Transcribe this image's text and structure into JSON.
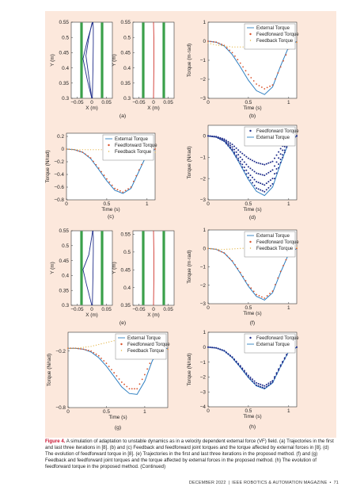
{
  "caption": {
    "label": "Figure 4.",
    "text": "A simulation of adaptation to unstable dynamics as in a velocity dependent external force (VF) field. (a) Trajectories in the first and last three iterations in [8]. (b) and (c) Feedback and feedforward joint torques and the torque affected by external forces in [8]. (d) The evolution of feedforward torque in [8]. (e) Trajectories in the first and last three iterations in the proposed method. (f) and (g) Feedback and feedforward joint torques and the torque affected by external forces in the proposed method. (h) The evolution of feedforward torque in the proposed method. (Continued)"
  },
  "footer": {
    "date": "DECEMBER 2022",
    "magazine": "IEEE ROBOTICS & AUTOMATION MAGAZINE",
    "page": "71"
  },
  "colors": {
    "external": "#2e7fc1",
    "feedforward": "#d9522a",
    "feedback": "#e3b23c",
    "ff_evolution": "#1f2d8a",
    "green": "#3aa04a",
    "red": "#d0342c",
    "blue": "#1f2d8a"
  },
  "legend_labels": {
    "external": "External Torque",
    "feedforward": "Feedforward Torque",
    "feedback": "Feedback Torque"
  },
  "chart_data": [
    {
      "id": "a",
      "panel_label": "(a)",
      "type": "line",
      "plots": [
        {
          "xlabel": "X (m)",
          "ylabel": "Y (m)",
          "xlim": [
            -0.07,
            0.07
          ],
          "ylim": [
            0.3,
            0.55
          ],
          "xticks": [
            "-0.05",
            "0",
            "0.05"
          ],
          "yticks": [
            "0.3",
            "0.35",
            "0.4",
            "0.45",
            "0.5",
            "0.55"
          ],
          "boundaries": [
            -0.035,
            0.035
          ],
          "series": [
            {
              "color": "blue",
              "x": [
                0,
                -0.015,
                -0.03,
                -0.015,
                0.0,
                0.003
              ],
              "y": [
                0.3,
                0.36,
                0.43,
                0.49,
                0.54,
                0.55
              ]
            },
            {
              "color": "blue",
              "x": [
                0,
                -0.01,
                -0.02,
                -0.01,
                0.0,
                0.003
              ],
              "y": [
                0.3,
                0.37,
                0.44,
                0.5,
                0.545,
                0.55
              ]
            },
            {
              "color": "blue",
              "x": [
                0.002,
                0.004,
                0.005,
                0.005,
                0.004
              ],
              "y": [
                0.3,
                0.4,
                0.48,
                0.53,
                0.55
              ]
            }
          ]
        },
        {
          "xlabel": "X (m)",
          "ylabel": "Y (m)",
          "xlim": [
            -0.07,
            0.07
          ],
          "ylim": [
            0.3,
            0.55
          ],
          "xticks": [
            "-0.05",
            "0",
            "0.05"
          ],
          "yticks": [
            "0.3",
            "0.35",
            "0.4",
            "0.45",
            "0.5",
            "0.55"
          ],
          "boundaries": [
            -0.035,
            0.035
          ],
          "series": [
            {
              "color": "red",
              "x": [
                0,
                0.001,
                0.001,
                0.0
              ],
              "y": [
                0.3,
                0.4,
                0.5,
                0.55
              ]
            }
          ]
        }
      ]
    },
    {
      "id": "b",
      "panel_label": "(b)",
      "type": "line",
      "xlabel": "Time (s)",
      "ylabel": "Torque (m·rad)",
      "xlim": [
        0,
        1.1
      ],
      "ylim": [
        -3,
        1
      ],
      "xticks": [
        "0",
        "0.5",
        "1"
      ],
      "yticks": [
        "-3",
        "-2",
        "-1",
        "0",
        "1"
      ],
      "legend": [
        "external",
        "feedforward",
        "feedback"
      ],
      "x": [
        0,
        0.1,
        0.2,
        0.3,
        0.4,
        0.5,
        0.6,
        0.7,
        0.8,
        0.9,
        1.0,
        1.1
      ],
      "series": [
        {
          "key": "external",
          "values": [
            0,
            -0.05,
            -0.25,
            -0.7,
            -1.35,
            -2.05,
            -2.6,
            -2.8,
            -2.4,
            -1.3,
            -0.3,
            0.0
          ]
        },
        {
          "key": "feedforward",
          "values": [
            0,
            -0.05,
            -0.22,
            -0.6,
            -1.15,
            -1.75,
            -2.25,
            -2.5,
            -2.3,
            -1.35,
            -0.4,
            -0.05
          ]
        },
        {
          "key": "feedback",
          "values": [
            -0.1,
            -0.2,
            -0.25,
            -0.3,
            -0.3,
            -0.3,
            -0.28,
            -0.25,
            -0.22,
            -0.15,
            -0.08,
            -0.05
          ]
        }
      ]
    },
    {
      "id": "c",
      "panel_label": "(c)",
      "type": "line",
      "xlabel": "Time (s)",
      "ylabel": "Torque (N/rad)",
      "xlim": [
        0,
        1.1
      ],
      "ylim": [
        -0.8,
        0.25
      ],
      "xticks": [
        "0",
        "0.5",
        "1"
      ],
      "yticks": [
        "-0.8",
        "-0.6",
        "-0.4",
        "-0.2",
        "0",
        "0.2"
      ],
      "legend": [
        "external",
        "feedforward",
        "feedback"
      ],
      "x": [
        0,
        0.1,
        0.2,
        0.3,
        0.4,
        0.5,
        0.6,
        0.7,
        0.8,
        0.9,
        1.0,
        1.1
      ],
      "series": [
        {
          "key": "external",
          "values": [
            0,
            -0.01,
            -0.05,
            -0.15,
            -0.32,
            -0.5,
            -0.65,
            -0.7,
            -0.62,
            -0.35,
            -0.08,
            0.0
          ]
        },
        {
          "key": "feedforward",
          "values": [
            0,
            -0.01,
            -0.05,
            -0.14,
            -0.3,
            -0.47,
            -0.62,
            -0.68,
            -0.6,
            -0.33,
            -0.07,
            0.0
          ]
        },
        {
          "key": "feedback",
          "values": [
            0,
            -0.01,
            -0.01,
            -0.01,
            -0.01,
            -0.01,
            -0.02,
            -0.02,
            -0.03,
            -0.06,
            -0.07,
            -0.05
          ]
        }
      ]
    },
    {
      "id": "d",
      "panel_label": "(d)",
      "type": "line",
      "xlabel": "Time (s)",
      "ylabel": "Torque (N/rad)",
      "xlim": [
        0,
        1.1
      ],
      "ylim": [
        -3,
        0.5
      ],
      "xticks": [
        "0",
        "0.5",
        "1"
      ],
      "yticks": [
        "-3",
        "-2",
        "-1",
        "0"
      ],
      "legend": [
        "feedforward",
        "external"
      ],
      "x": [
        0,
        0.1,
        0.2,
        0.3,
        0.4,
        0.5,
        0.6,
        0.7,
        0.8,
        0.9,
        1.0,
        1.1
      ],
      "series": [
        {
          "key": "external",
          "values": [
            0,
            -0.05,
            -0.25,
            -0.7,
            -1.35,
            -2.05,
            -2.6,
            -2.8,
            -2.4,
            -1.3,
            -0.3,
            0.0
          ]
        },
        {
          "key": "ff_evolution",
          "values": [
            0,
            -0.03,
            -0.15,
            -0.4,
            -0.75,
            -1.05,
            -1.25,
            -1.35,
            -1.2,
            -0.6,
            -0.1,
            0.0
          ]
        },
        {
          "key": "ff_evolution",
          "values": [
            0,
            -0.04,
            -0.2,
            -0.52,
            -1.0,
            -1.45,
            -1.75,
            -1.85,
            -1.6,
            -0.85,
            -0.15,
            0.0
          ]
        },
        {
          "key": "ff_evolution",
          "values": [
            0,
            -0.05,
            -0.23,
            -0.62,
            -1.2,
            -1.75,
            -2.15,
            -2.3,
            -2.0,
            -1.1,
            -0.25,
            0.0
          ]
        },
        {
          "key": "ff_evolution",
          "values": [
            0,
            -0.05,
            -0.25,
            -0.68,
            -1.3,
            -1.95,
            -2.45,
            -2.62,
            -2.25,
            -1.25,
            -0.3,
            0.0
          ]
        }
      ]
    },
    {
      "id": "e",
      "panel_label": "(e)",
      "type": "line",
      "plots": [
        {
          "xlabel": "X (m)",
          "ylabel": "Y (m)",
          "xlim": [
            -0.07,
            0.07
          ],
          "ylim": [
            0.3,
            0.55
          ],
          "xticks": [
            "-0.05",
            "0",
            "0.05"
          ],
          "yticks": [
            "0.3",
            "0.35",
            "0.4",
            "0.45",
            "0.5",
            "0.55"
          ],
          "boundaries": [
            -0.035,
            0.035
          ],
          "series": [
            {
              "color": "blue",
              "x": [
                0,
                -0.018,
                -0.03,
                -0.01,
                0.0,
                0.003
              ],
              "y": [
                0.3,
                0.37,
                0.42,
                0.47,
                0.53,
                0.55
              ]
            },
            {
              "color": "blue",
              "x": [
                0.002,
                0.004,
                0.005,
                0.005,
                0.004
              ],
              "y": [
                0.3,
                0.4,
                0.48,
                0.53,
                0.55
              ]
            }
          ]
        },
        {
          "xlabel": "X (m)",
          "ylabel": "Y (m)",
          "xlim": [
            -0.07,
            0.07
          ],
          "ylim": [
            0.35,
            0.56
          ],
          "xticks": [
            "-0.05",
            "0",
            "0.05"
          ],
          "yticks": [
            "0.35",
            "0.4",
            "0.45",
            "0.5",
            "0.55"
          ],
          "boundaries": [
            -0.035,
            0.035
          ],
          "series": [
            {
              "color": "red",
              "x": [
                0,
                0.001,
                0.001,
                0.0
              ],
              "y": [
                0.35,
                0.42,
                0.5,
                0.56
              ]
            }
          ]
        }
      ]
    },
    {
      "id": "f",
      "panel_label": "(f)",
      "type": "line",
      "xlabel": "Time (s)",
      "ylabel": "Torque (m·rad)",
      "xlim": [
        0,
        1.1
      ],
      "ylim": [
        -3,
        1
      ],
      "xticks": [
        "0",
        "0.5",
        "1"
      ],
      "yticks": [
        "-3",
        "-2",
        "-1",
        "0",
        "1"
      ],
      "legend": [
        "external",
        "feedforward",
        "feedback"
      ],
      "x": [
        0,
        0.1,
        0.2,
        0.3,
        0.4,
        0.5,
        0.6,
        0.7,
        0.8,
        0.9,
        1.0,
        1.1
      ],
      "series": [
        {
          "key": "external",
          "values": [
            0,
            -0.05,
            -0.25,
            -0.7,
            -1.35,
            -2.05,
            -2.6,
            -2.8,
            -2.4,
            -1.3,
            -0.3,
            0.0
          ]
        },
        {
          "key": "feedforward",
          "values": [
            0,
            -0.05,
            -0.25,
            -0.68,
            -1.3,
            -1.98,
            -2.5,
            -2.7,
            -2.32,
            -1.25,
            -0.3,
            0.0
          ]
        },
        {
          "key": "feedback",
          "values": [
            0,
            -0.05,
            -0.05,
            -0.03,
            0.0,
            0.02,
            0.05,
            0.08,
            0.1,
            0.12,
            0.1,
            0.05
          ]
        }
      ]
    },
    {
      "id": "g",
      "panel_label": "(g)",
      "type": "line",
      "xlabel": "Time (s)",
      "ylabel": "Torque (N/rad)",
      "xlim": [
        0,
        1.3
      ],
      "ylim": [
        -0.8,
        0.0
      ],
      "xticks": [
        "0",
        "0.5",
        "1"
      ],
      "yticks": [
        "-0.8",
        "-0.2"
      ],
      "legend": [
        "external",
        "feedforward",
        "feedback"
      ],
      "x": [
        0,
        0.1,
        0.2,
        0.3,
        0.4,
        0.5,
        0.6,
        0.7,
        0.8,
        0.9,
        1.0,
        1.1,
        1.2,
        1.3
      ],
      "series": [
        {
          "key": "external",
          "values": [
            -0.17,
            -0.17,
            -0.18,
            -0.21,
            -0.27,
            -0.36,
            -0.47,
            -0.58,
            -0.65,
            -0.66,
            -0.52,
            -0.3,
            -0.19,
            -0.17
          ]
        },
        {
          "key": "feedforward",
          "values": [
            -0.17,
            -0.17,
            -0.18,
            -0.2,
            -0.25,
            -0.33,
            -0.43,
            -0.53,
            -0.6,
            -0.6,
            -0.45,
            -0.27,
            -0.19,
            -0.18
          ]
        },
        {
          "key": "feedback",
          "values": [
            -0.17,
            -0.17,
            -0.16,
            -0.15,
            -0.13,
            -0.11,
            -0.09,
            -0.09,
            -0.1,
            -0.13,
            -0.17,
            -0.18,
            -0.18,
            -0.18
          ]
        }
      ]
    },
    {
      "id": "h",
      "panel_label": "(h)",
      "type": "line",
      "xlabel": "Time (s)",
      "ylabel": "Torque (N/rad)",
      "xlim": [
        0,
        1.1
      ],
      "ylim": [
        -4,
        1
      ],
      "xticks": [
        "0",
        "0.5",
        "1"
      ],
      "yticks": [
        "-4",
        "-3",
        "-2",
        "-1",
        "0",
        "1"
      ],
      "legend": [
        "feedforward",
        "external"
      ],
      "x": [
        0,
        0.1,
        0.2,
        0.3,
        0.4,
        0.5,
        0.6,
        0.7,
        0.8,
        0.9,
        1.0,
        1.1
      ],
      "series": [
        {
          "key": "external",
          "values": [
            0,
            -0.05,
            -0.25,
            -0.7,
            -1.35,
            -2.05,
            -2.6,
            -2.8,
            -2.4,
            -1.3,
            -0.3,
            0.0
          ]
        },
        {
          "key": "ff_evolution",
          "values": [
            0,
            -0.05,
            -0.24,
            -0.66,
            -1.25,
            -1.9,
            -2.4,
            -2.6,
            -2.25,
            -1.2,
            -0.25,
            0.0
          ]
        },
        {
          "key": "ff_evolution",
          "values": [
            0,
            -0.05,
            -0.25,
            -0.69,
            -1.32,
            -2.0,
            -2.55,
            -2.75,
            -2.35,
            -1.28,
            -0.28,
            0.0
          ]
        }
      ]
    }
  ]
}
